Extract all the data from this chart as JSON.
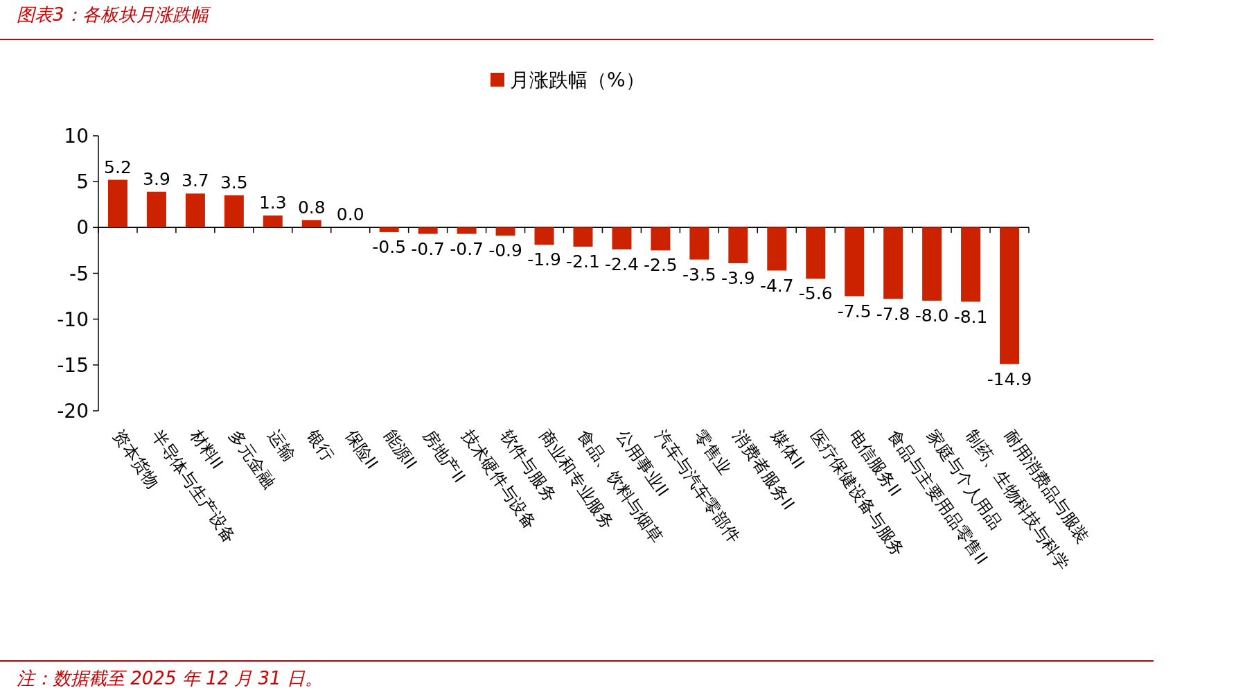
{
  "chart_data": {
    "type": "bar",
    "title": "图表3：各板块月涨跌幅",
    "categories": [
      "资本货物",
      "半导体与生产设备",
      "材料II",
      "多元金融",
      "运输",
      "银行",
      "保险II",
      "能源II",
      "房地产II",
      "技术硬件与设备",
      "软件与服务",
      "商业和专业服务",
      "食品、饮料与烟草",
      "公用事业II",
      "汽车与汽车零部件",
      "零售业",
      "消费者服务II",
      "媒体II",
      "医疗保健设备与服务",
      "电信服务II",
      "食品与主要用品零售II",
      "家庭与个人用品",
      "制药、生物科技与科学",
      "耐用消费品与服装"
    ],
    "series": [
      {
        "name": "月涨跌幅（%）",
        "color": "#cc2200",
        "values": [
          5.2,
          3.9,
          3.7,
          3.5,
          1.3,
          0.8,
          0.0,
          -0.5,
          -0.7,
          -0.7,
          -0.9,
          -1.9,
          -2.1,
          -2.4,
          -2.5,
          -3.5,
          -3.9,
          -4.7,
          -5.6,
          -7.5,
          -7.8,
          -8.0,
          -8.1,
          -14.9
        ],
        "value_labels": [
          "5.2",
          "3.9",
          "3.7",
          "3.5",
          "1.3",
          "0.8",
          "0.0",
          "-0.5",
          "-0.7",
          "-0.7",
          "-0.9",
          "-1.9",
          "-2.1",
          "-2.4",
          "-2.5",
          "-3.5",
          "-3.9",
          "-4.7",
          "-5.6",
          "-7.5",
          "-7.8",
          "-8.0",
          "-8.1",
          "-14.9"
        ]
      }
    ],
    "ylim": [
      -20,
      10
    ],
    "yticks": [
      -20,
      -15,
      -10,
      -5,
      0,
      5,
      10
    ],
    "legend": "top",
    "annotations": [
      "注：数据截至 2025 年 12 月 31 日。"
    ]
  }
}
